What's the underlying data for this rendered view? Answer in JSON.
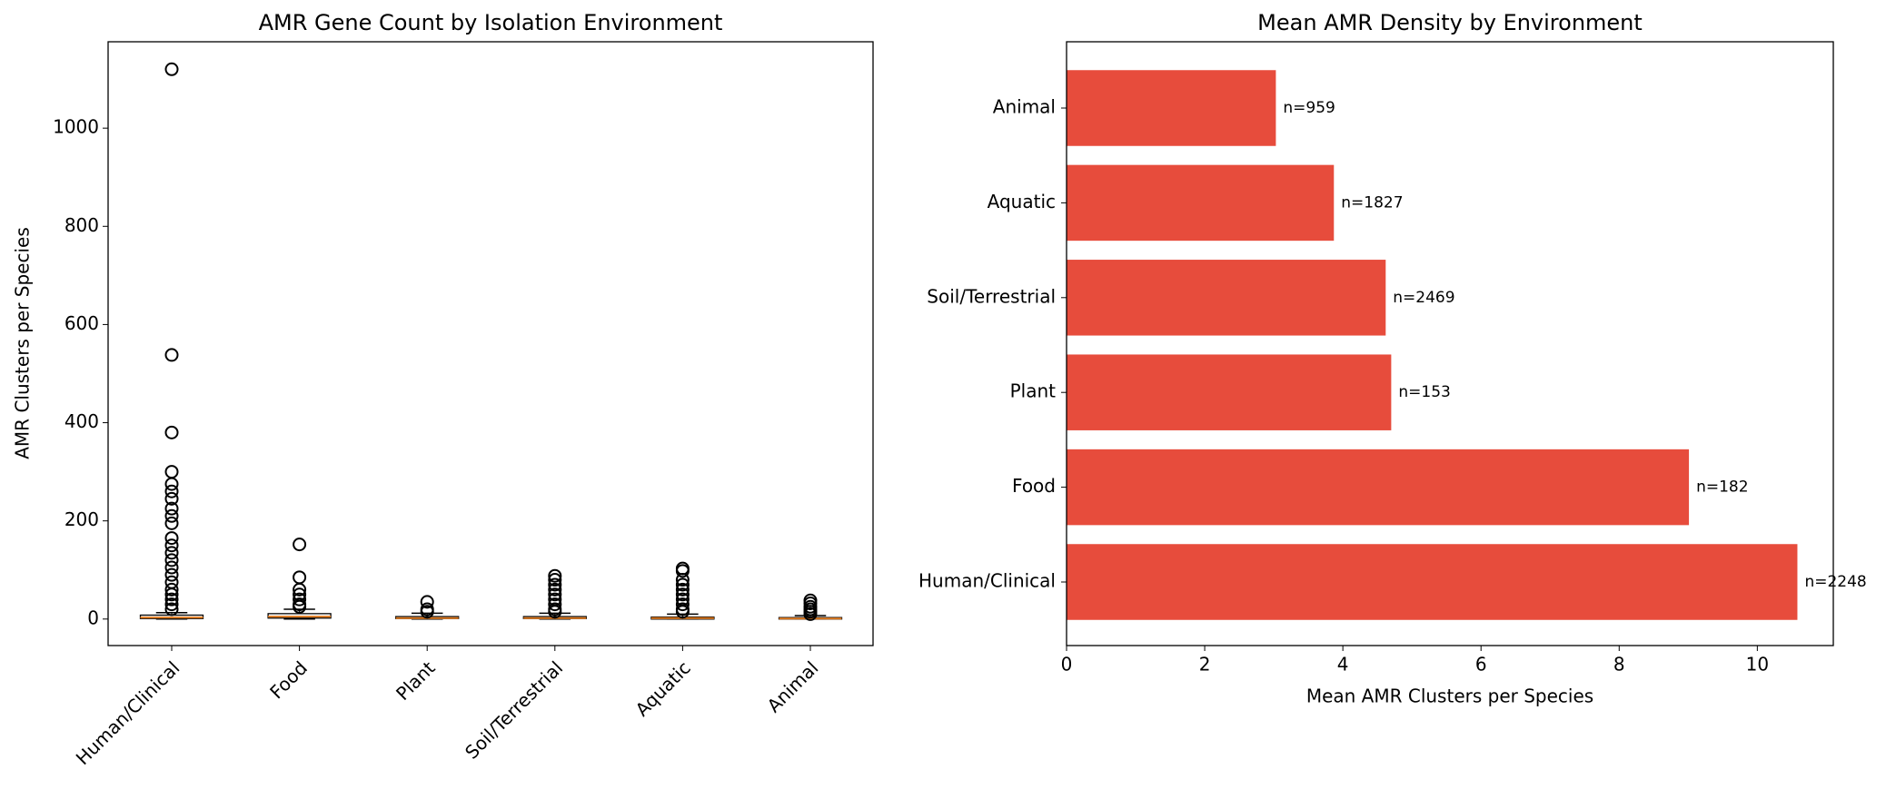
{
  "chart_data": [
    {
      "type": "box",
      "title": "AMR Gene Count by Isolation Environment",
      "y_label": "AMR Clusters per Species",
      "categories": [
        "Human/Clinical",
        "Food",
        "Plant",
        "Soil/Terrestrial",
        "Aquatic",
        "Animal"
      ],
      "boxes": [
        {
          "whislo": 0,
          "q1": 1,
          "med": 3,
          "q3": 8,
          "whishi": 13,
          "fliers": [
            1120,
            538,
            380,
            300,
            275,
            260,
            245,
            225,
            210,
            195,
            165,
            150,
            135,
            120,
            105,
            90,
            75,
            60,
            50,
            40,
            30,
            20
          ]
        },
        {
          "whislo": 0,
          "q1": 2,
          "med": 5,
          "q3": 11,
          "whishi": 20,
          "fliers": [
            152,
            85,
            60,
            50,
            40,
            30,
            25
          ]
        },
        {
          "whislo": 0,
          "q1": 1,
          "med": 2,
          "q3": 5,
          "whishi": 12,
          "fliers": [
            35,
            20,
            15
          ]
        },
        {
          "whislo": 0,
          "q1": 1,
          "med": 2,
          "q3": 5,
          "whishi": 12,
          "fliers": [
            88,
            80,
            70,
            60,
            50,
            40,
            30,
            20,
            15
          ]
        },
        {
          "whislo": 0,
          "q1": 0,
          "med": 2,
          "q3": 4,
          "whishi": 10,
          "fliers": [
            103,
            98,
            80,
            70,
            60,
            50,
            40,
            30,
            20,
            15
          ]
        },
        {
          "whislo": 0,
          "q1": 0,
          "med": 1,
          "q3": 3,
          "whishi": 7,
          "fliers": [
            38,
            32,
            25,
            20,
            15,
            10
          ]
        }
      ],
      "box_color": "#000000",
      "median_color": "#e07b20",
      "ylim": [
        -54,
        1176
      ],
      "yticks": [
        0,
        200,
        400,
        600,
        800,
        1000
      ]
    },
    {
      "type": "barh",
      "title": "Mean AMR Density by Environment",
      "x_label": "Mean AMR Clusters per Species",
      "categories": [
        "Human/Clinical",
        "Food",
        "Plant",
        "Soil/Terrestrial",
        "Aquatic",
        "Animal"
      ],
      "values": [
        10.58,
        9.01,
        4.7,
        4.62,
        3.87,
        3.03
      ],
      "annotations": [
        "n=2248",
        "n=182",
        "n=153",
        "n=2469",
        "n=1827",
        "n=959"
      ],
      "color": "#e74c3c",
      "xlim": [
        0,
        11.1
      ],
      "xticks": [
        0,
        2,
        4,
        6,
        8,
        10
      ]
    }
  ]
}
